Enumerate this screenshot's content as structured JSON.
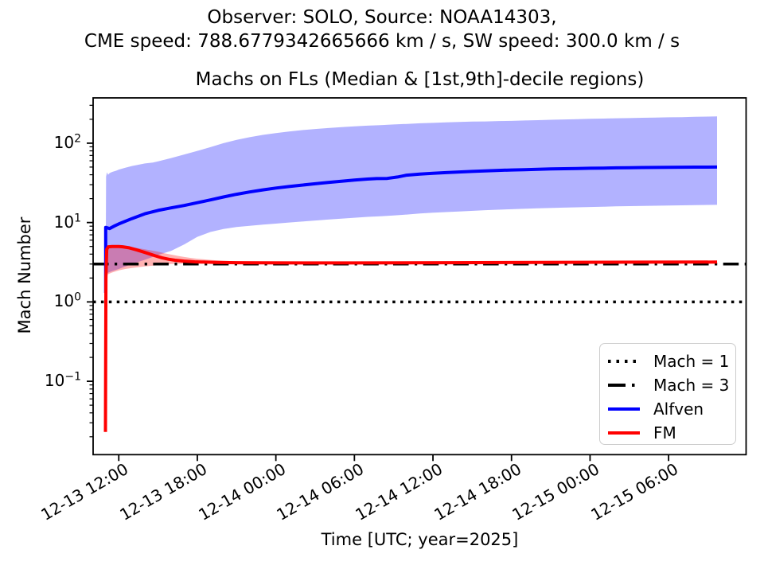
{
  "figure": {
    "suptitle_line1": "Observer: SOLO, Source: NOAA14303,",
    "suptitle_line2": "CME speed: 788.6779342665666 km / s, SW speed: 300.0 km / s",
    "background_color": "#ffffff",
    "text_color": "#000000"
  },
  "chart_data": {
    "type": "line",
    "title": "Machs on FLs (Median & [1st,9th]-decile regions)",
    "xlabel": "Time [UTC; year=2025]",
    "ylabel": "Mach Number",
    "yscale": "log",
    "grid": false,
    "ylim": [
      0.0119,
      372
    ],
    "x_unit": "hours since 2025-12-13 12:00 UTC",
    "xlim_hours": [
      -1.96,
      47.92
    ],
    "legend_position": "lower right",
    "xticks": [
      {
        "t": 0,
        "label": "12-13 12:00"
      },
      {
        "t": 6,
        "label": "12-13 18:00"
      },
      {
        "t": 12,
        "label": "12-14 00:00"
      },
      {
        "t": 18,
        "label": "12-14 06:00"
      },
      {
        "t": 24,
        "label": "12-14 12:00"
      },
      {
        "t": 30,
        "label": "12-14 18:00"
      },
      {
        "t": 36,
        "label": "12-15 00:00"
      },
      {
        "t": 42,
        "label": "12-15 06:00"
      }
    ],
    "ytick_base": "10",
    "yticks": [
      {
        "value": 100,
        "exp": "2"
      },
      {
        "value": 10,
        "exp": "1"
      },
      {
        "value": 1,
        "exp": "0"
      },
      {
        "value": 0.1,
        "exp": "−1"
      }
    ],
    "reference_lines": [
      {
        "label": "Mach = 1",
        "value": 1,
        "style": "dotted",
        "color": "#000000"
      },
      {
        "label": "Mach = 3",
        "value": 3,
        "style": "dashdot",
        "color": "#000000"
      }
    ],
    "legend": [
      {
        "label": "Mach = 1",
        "style": "dotted",
        "color": "#000000"
      },
      {
        "label": "Mach = 3",
        "style": "dashdot",
        "color": "#000000"
      },
      {
        "label": "Alfven",
        "style": "solid",
        "color": "#0000ff"
      },
      {
        "label": "FM",
        "style": "solid",
        "color": "#ff0000"
      }
    ],
    "series": [
      {
        "name": "Alfven",
        "color": "#0000ff",
        "band_fill": "rgba(0,0,255,0.3)",
        "median": [
          [
            -1.0,
            1.3
          ],
          [
            -1.0,
            8.7
          ],
          [
            -0.7,
            8.4
          ],
          [
            -0.3,
            9.1
          ],
          [
            0,
            9.6
          ],
          [
            1,
            11.2
          ],
          [
            2,
            12.9
          ],
          [
            3,
            14.2
          ],
          [
            4,
            15.3
          ],
          [
            5,
            16.4
          ],
          [
            6,
            17.8
          ],
          [
            7,
            19.3
          ],
          [
            8,
            21.0
          ],
          [
            9,
            22.7
          ],
          [
            10,
            24.3
          ],
          [
            11,
            25.8
          ],
          [
            12,
            27.2
          ],
          [
            13,
            28.4
          ],
          [
            14,
            29.6
          ],
          [
            15,
            30.8
          ],
          [
            16,
            32.0
          ],
          [
            17,
            33.2
          ],
          [
            18,
            34.3
          ],
          [
            19,
            35.3
          ],
          [
            19.7,
            35.8
          ],
          [
            20.5,
            36.0
          ],
          [
            21.3,
            37.5
          ],
          [
            22,
            39.5
          ],
          [
            23,
            40.7
          ],
          [
            24,
            41.7
          ],
          [
            25,
            42.6
          ],
          [
            26,
            43.4
          ],
          [
            27,
            44.1
          ],
          [
            28,
            44.8
          ],
          [
            29,
            45.4
          ],
          [
            30,
            45.9
          ],
          [
            31,
            46.4
          ],
          [
            32,
            46.9
          ],
          [
            33,
            47.3
          ],
          [
            34,
            47.7
          ],
          [
            35,
            48.0
          ],
          [
            36,
            48.3
          ],
          [
            37,
            48.6
          ],
          [
            38,
            48.9
          ],
          [
            39,
            49.1
          ],
          [
            40,
            49.3
          ],
          [
            41,
            49.5
          ],
          [
            42,
            49.7
          ],
          [
            43,
            49.8
          ],
          [
            44,
            49.9
          ],
          [
            45.7,
            50.0
          ]
        ],
        "upper_decile": [
          [
            -1.0,
            2.2
          ],
          [
            -0.97,
            38
          ],
          [
            -0.9,
            43
          ],
          [
            -0.82,
            40
          ],
          [
            -0.7,
            42
          ],
          [
            -0.5,
            43.5
          ],
          [
            -0.2,
            45
          ],
          [
            0,
            46.5
          ],
          [
            0.5,
            49
          ],
          [
            1,
            51.5
          ],
          [
            1.5,
            53.5
          ],
          [
            2,
            55.5
          ],
          [
            2.6,
            57
          ],
          [
            3,
            59
          ],
          [
            4,
            65
          ],
          [
            5,
            72
          ],
          [
            6,
            80
          ],
          [
            7,
            89
          ],
          [
            8,
            100
          ],
          [
            9,
            110
          ],
          [
            10,
            119
          ],
          [
            11,
            127
          ],
          [
            12,
            134
          ],
          [
            13,
            140
          ],
          [
            14,
            146
          ],
          [
            15,
            151
          ],
          [
            16,
            155
          ],
          [
            17,
            159
          ],
          [
            18,
            163
          ],
          [
            19,
            166
          ],
          [
            20,
            169
          ],
          [
            21,
            172
          ],
          [
            22,
            175
          ],
          [
            23,
            178
          ],
          [
            24,
            180
          ],
          [
            25,
            183
          ],
          [
            26,
            185
          ],
          [
            27,
            187
          ],
          [
            28,
            188
          ],
          [
            29,
            190
          ],
          [
            30,
            191
          ],
          [
            31,
            193
          ],
          [
            32,
            195
          ],
          [
            33,
            197
          ],
          [
            34,
            199
          ],
          [
            35,
            201
          ],
          [
            36,
            203
          ],
          [
            37,
            204
          ],
          [
            38,
            206
          ],
          [
            39,
            207
          ],
          [
            40,
            209
          ],
          [
            41,
            210
          ],
          [
            42,
            212
          ],
          [
            43,
            213
          ],
          [
            44,
            215
          ],
          [
            45,
            216
          ],
          [
            45.7,
            217
          ]
        ],
        "lower_decile": [
          [
            -1.0,
            1.0
          ],
          [
            -0.9,
            2.3
          ],
          [
            -0.5,
            2.45
          ],
          [
            0,
            2.6
          ],
          [
            1,
            3.0
          ],
          [
            2,
            3.4
          ],
          [
            3,
            3.9
          ],
          [
            4,
            4.4
          ],
          [
            5,
            5.3
          ],
          [
            6,
            6.6
          ],
          [
            7,
            7.6
          ],
          [
            8,
            8.3
          ],
          [
            9,
            8.8
          ],
          [
            10,
            9.1
          ],
          [
            11,
            9.4
          ],
          [
            12,
            9.7
          ],
          [
            13,
            10.0
          ],
          [
            14,
            10.3
          ],
          [
            15,
            10.6
          ],
          [
            16,
            10.9
          ],
          [
            17,
            11.2
          ],
          [
            18,
            11.5
          ],
          [
            19,
            11.8
          ],
          [
            20,
            12.0
          ],
          [
            21,
            12.3
          ],
          [
            22,
            12.6
          ],
          [
            23,
            13.0
          ],
          [
            24,
            13.3
          ],
          [
            26,
            13.8
          ],
          [
            28,
            14.3
          ],
          [
            30,
            14.7
          ],
          [
            32,
            15.1
          ],
          [
            34,
            15.4
          ],
          [
            36,
            15.7
          ],
          [
            38,
            16.0
          ],
          [
            40,
            16.2
          ],
          [
            42,
            16.4
          ],
          [
            44,
            16.6
          ],
          [
            45.7,
            16.7
          ]
        ]
      },
      {
        "name": "FM",
        "color": "#ff0000",
        "band_fill": "rgba(255,0,0,0.3)",
        "median": [
          [
            -1.02,
            0.023
          ],
          [
            -0.98,
            2.0
          ],
          [
            -0.92,
            4.6
          ],
          [
            -0.8,
            4.95
          ],
          [
            -0.5,
            5.0
          ],
          [
            0,
            5.0
          ],
          [
            0.3,
            4.95
          ],
          [
            0.8,
            4.8
          ],
          [
            1.3,
            4.55
          ],
          [
            1.8,
            4.3
          ],
          [
            2.3,
            4.05
          ],
          [
            2.8,
            3.8
          ],
          [
            3.3,
            3.6
          ],
          [
            3.8,
            3.45
          ],
          [
            4.3,
            3.35
          ],
          [
            5,
            3.27
          ],
          [
            5.8,
            3.2
          ],
          [
            6.6,
            3.17
          ],
          [
            7.5,
            3.15
          ],
          [
            9,
            3.12
          ],
          [
            11,
            3.11
          ],
          [
            14,
            3.1
          ],
          [
            18,
            3.1
          ],
          [
            25,
            3.12
          ],
          [
            32,
            3.15
          ],
          [
            40,
            3.17
          ],
          [
            45.7,
            3.18
          ]
        ],
        "upper_decile": [
          [
            -1.02,
            0.03
          ],
          [
            -0.92,
            5.0
          ],
          [
            -0.5,
            5.15
          ],
          [
            0,
            5.15
          ],
          [
            0.5,
            5.05
          ],
          [
            1,
            4.9
          ],
          [
            1.5,
            4.75
          ],
          [
            2,
            4.6
          ],
          [
            2.5,
            4.45
          ],
          [
            3,
            4.3
          ],
          [
            3.5,
            4.1
          ],
          [
            4,
            3.95
          ],
          [
            4.5,
            3.8
          ],
          [
            5,
            3.68
          ],
          [
            5.5,
            3.58
          ],
          [
            6,
            3.5
          ],
          [
            7,
            3.38
          ],
          [
            8,
            3.3
          ],
          [
            10,
            3.22
          ],
          [
            12,
            3.18
          ],
          [
            14,
            3.16
          ],
          [
            18,
            3.14
          ],
          [
            25,
            3.16
          ],
          [
            32,
            3.18
          ],
          [
            40,
            3.2
          ],
          [
            45.7,
            3.21
          ]
        ],
        "lower_decile": [
          [
            -1.02,
            0.02
          ],
          [
            -0.92,
            2.2
          ],
          [
            -0.5,
            2.35
          ],
          [
            0,
            2.5
          ],
          [
            0.5,
            2.6
          ],
          [
            1,
            2.68
          ],
          [
            1.5,
            2.74
          ],
          [
            2,
            2.8
          ],
          [
            2.5,
            2.85
          ],
          [
            3,
            2.9
          ],
          [
            3.5,
            2.95
          ],
          [
            4,
            3.0
          ],
          [
            4.5,
            3.02
          ],
          [
            5.5,
            3.05
          ],
          [
            6.5,
            3.08
          ],
          [
            8,
            3.1
          ],
          [
            10,
            3.1
          ],
          [
            14,
            3.08
          ],
          [
            20,
            3.08
          ],
          [
            30,
            3.1
          ],
          [
            45.7,
            3.12
          ]
        ]
      }
    ]
  }
}
